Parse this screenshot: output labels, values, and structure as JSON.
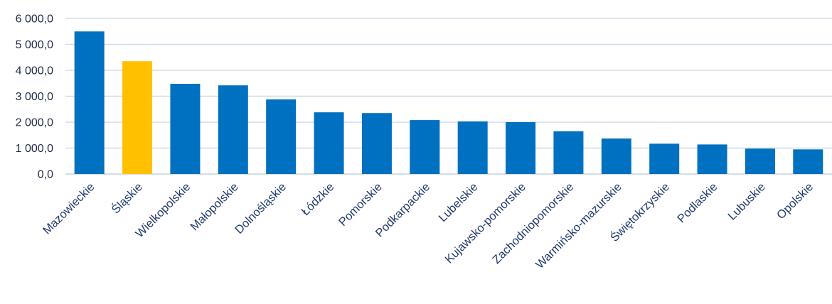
{
  "chart_data": {
    "type": "bar",
    "title": "",
    "xlabel": "",
    "ylabel": "",
    "ylim": [
      0,
      6000
    ],
    "yticks": [
      0,
      1000,
      2000,
      3000,
      4000,
      5000,
      6000
    ],
    "ytick_labels": [
      "0,0",
      "1 000,0",
      "2 000,0",
      "3 000,0",
      "4 000,0",
      "5 000,0",
      "6 000,0"
    ],
    "grid": true,
    "legend": "none",
    "categories": [
      "Mazowieckie",
      "Śląskie",
      "Wielkopolskie",
      "Małopolskie",
      "Dolnośląskie",
      "Łódzkie",
      "Pomorskie",
      "Podkarpackie",
      "Lubelskie",
      "Kujawsko-pomorskie",
      "Zachodniopomorskie",
      "Warmińsko-mazurskie",
      "Świętokrzyskie",
      "Podlaskie",
      "Lubuskie",
      "Opolskie"
    ],
    "values": [
      5500,
      4350,
      3480,
      3420,
      2880,
      2380,
      2350,
      2080,
      2030,
      2000,
      1650,
      1370,
      1170,
      1140,
      980,
      950
    ],
    "colors": {
      "default": "#0070c0",
      "highlight": "#ffc000",
      "highlight_category": "Śląskie"
    }
  }
}
